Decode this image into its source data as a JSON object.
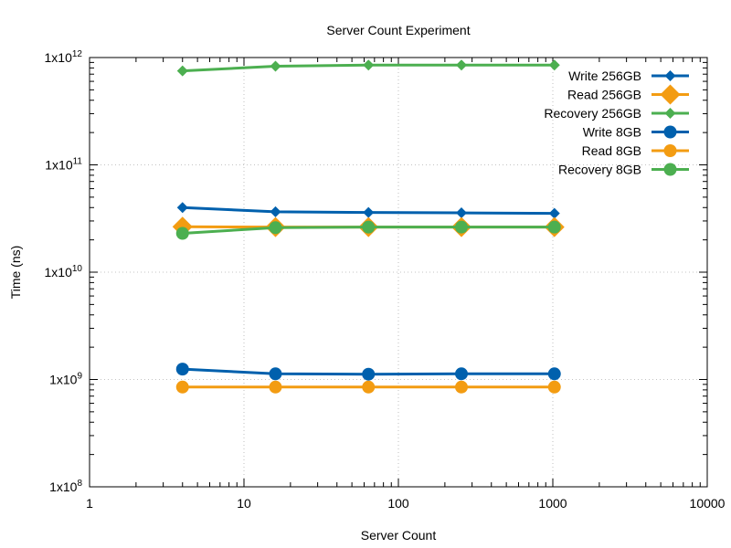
{
  "chart_data": {
    "type": "line",
    "title": "Server Count Experiment",
    "xlabel": "Server Count",
    "ylabel": "Time (ns)",
    "xscale": "log",
    "yscale": "log",
    "xlim": [
      1,
      10000
    ],
    "ylim": [
      100000000,
      1000000000000
    ],
    "grid": true,
    "legend_position": "top-right",
    "x_ticks": [
      {
        "value": 1,
        "label": "1"
      },
      {
        "value": 10,
        "label": "10"
      },
      {
        "value": 100,
        "label": "100"
      },
      {
        "value": 1000,
        "label": "1000"
      },
      {
        "value": 10000,
        "label": "10000"
      }
    ],
    "y_ticks": [
      {
        "value": 100000000,
        "base": "1x10",
        "exp": "8"
      },
      {
        "value": 1000000000,
        "base": "1x10",
        "exp": "9"
      },
      {
        "value": 10000000000,
        "base": "1x10",
        "exp": "10"
      },
      {
        "value": 100000000000,
        "base": "1x10",
        "exp": "11"
      },
      {
        "value": 1000000000000,
        "base": "1x10",
        "exp": "12"
      }
    ],
    "x": [
      4,
      16,
      64,
      256,
      1024
    ],
    "series": [
      {
        "name": "Write 256GB",
        "color": "#0060ad",
        "marker": "diamond",
        "size": 6,
        "values": [
          40000000000,
          36500000000,
          36000000000,
          35700000000,
          35300000000
        ]
      },
      {
        "name": "Read 256GB",
        "color": "#f39c12",
        "marker": "diamond",
        "size": 11,
        "values": [
          26500000000,
          26300000000,
          26300000000,
          26300000000,
          26300000000
        ]
      },
      {
        "name": "Recovery 256GB",
        "color": "#4caf50",
        "marker": "diamond",
        "size": 6,
        "values": [
          750000000000,
          830000000000,
          850000000000,
          850000000000,
          850000000000
        ]
      },
      {
        "name": "Write 8GB",
        "color": "#0060ad",
        "marker": "circle",
        "size": 7,
        "values": [
          1250000000,
          1130000000,
          1120000000,
          1130000000,
          1130000000
        ]
      },
      {
        "name": "Read 8GB",
        "color": "#f39c12",
        "marker": "circle",
        "size": 7,
        "values": [
          850000000,
          850000000,
          850000000,
          850000000,
          850000000
        ]
      },
      {
        "name": "Recovery 8GB",
        "color": "#4caf50",
        "marker": "circle",
        "size": 7,
        "values": [
          23000000000,
          26000000000,
          26300000000,
          26300000000,
          26300000000
        ]
      }
    ]
  }
}
